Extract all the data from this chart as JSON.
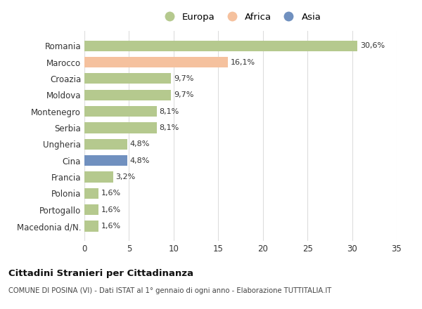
{
  "categories": [
    "Romania",
    "Marocco",
    "Croazia",
    "Moldova",
    "Montenegro",
    "Serbia",
    "Ungheria",
    "Cina",
    "Francia",
    "Polonia",
    "Portogallo",
    "Macedonia d/N."
  ],
  "values": [
    30.6,
    16.1,
    9.7,
    9.7,
    8.1,
    8.1,
    4.8,
    4.8,
    3.2,
    1.6,
    1.6,
    1.6
  ],
  "labels": [
    "30,6%",
    "16,1%",
    "9,7%",
    "9,7%",
    "8,1%",
    "8,1%",
    "4,8%",
    "4,8%",
    "3,2%",
    "1,6%",
    "1,6%",
    "1,6%"
  ],
  "colors": [
    "#b5c98e",
    "#f5c19e",
    "#b5c98e",
    "#b5c98e",
    "#b5c98e",
    "#b5c98e",
    "#b5c98e",
    "#7090bf",
    "#b5c98e",
    "#b5c98e",
    "#b5c98e",
    "#b5c98e"
  ],
  "legend": [
    {
      "label": "Europa",
      "color": "#b5c98e"
    },
    {
      "label": "Africa",
      "color": "#f5c19e"
    },
    {
      "label": "Asia",
      "color": "#7090bf"
    }
  ],
  "xlim": [
    0,
    35
  ],
  "xticks": [
    0,
    5,
    10,
    15,
    20,
    25,
    30,
    35
  ],
  "title1": "Cittadini Stranieri per Cittadinanza",
  "title2": "COMUNE DI POSINA (VI) - Dati ISTAT al 1° gennaio di ogni anno - Elaborazione TUTTITALIA.IT",
  "bg_color": "#ffffff",
  "grid_color": "#dddddd",
  "bar_height": 0.65,
  "label_fontsize": 8.0,
  "ytick_fontsize": 8.5,
  "xtick_fontsize": 8.5,
  "legend_fontsize": 9.5,
  "legend_markersize": 11
}
